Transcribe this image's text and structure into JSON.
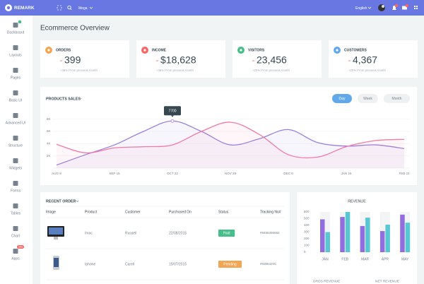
{
  "topbar": {
    "brand": "REMARK",
    "menu": "Mega",
    "language": "English"
  },
  "sidebar": {
    "items": [
      "Dashboard",
      "Layouts",
      "Pages",
      "Basic UI",
      "Advanced UI",
      "Structure",
      "Widgets",
      "Forms",
      "Tables",
      "Chart",
      "Apps"
    ],
    "apps_badge": "new"
  },
  "page_title": "Ecommerce Overview",
  "stats": [
    {
      "label": "ORDERS",
      "value": "399",
      "note": "+45% From previous month",
      "color": "#f2a654"
    },
    {
      "label": "INCOME",
      "value": "$18,628",
      "note": "+45% From previous month",
      "color": "#f96868"
    },
    {
      "label": "VISITORS",
      "value": "23,456",
      "note": "+25% From previous month",
      "color": "#46be8a"
    },
    {
      "label": "CUSTOMERS",
      "value": "4,367",
      "note": "+25% From previous month",
      "color": "#62a8ea"
    }
  ],
  "products_sales": {
    "type": "line",
    "title": "PRODUCTS SALES",
    "buttons": [
      "Day",
      "Week",
      "Month"
    ],
    "categories": [
      "AUG 8",
      null,
      "SEP 15",
      null,
      "OCT 22",
      null,
      "NOV 29",
      null,
      "DEC 8",
      null,
      "JAN 15",
      null,
      "FEB 22"
    ],
    "series": [
      {
        "color": "#9a7fe0",
        "values": [
          500,
          2200,
          3800,
          6000,
          7700,
          6000,
          3800,
          4800,
          6300,
          4200,
          3600,
          3800,
          3200
        ]
      },
      {
        "color": "#f27ba3",
        "values": [
          3900,
          2500,
          3300,
          3500,
          3800,
          6000,
          7500,
          5500,
          2200,
          1800,
          3500,
          4500,
          4700
        ]
      }
    ],
    "ylim": [
      0,
      9000
    ],
    "yticks": [
      {
        "value": 2000,
        "label": "2K"
      },
      {
        "value": 4000,
        "label": "4K"
      },
      {
        "value": 6000,
        "label": "6K"
      },
      {
        "value": 8000,
        "label": "8K"
      }
    ],
    "tooltip": "7700"
  },
  "recent_order": {
    "title": "RECENT ORDER",
    "columns": [
      "Image",
      "Product",
      "Customer",
      "Purchased On",
      "Status",
      "Tracking No#"
    ],
    "rows": [
      {
        "product": "Imac",
        "customer": "Russell",
        "purchased_on": "22/08/2015",
        "status": "Paid",
        "status_color": "#46be8a",
        "tracking": "#9486355060"
      },
      {
        "product": "Iphone",
        "customer": "Carell",
        "purchased_on": "15/07/2015",
        "status": "Pending",
        "status_color": "#f2a654",
        "tracking": "#9356420C"
      }
    ]
  },
  "revenue": {
    "type": "bar",
    "title": "REVENUE",
    "categories": [
      "JAN",
      "FEB",
      "MAR",
      "APR",
      "MAY"
    ],
    "series": [
      {
        "name": "GROS REVENUE",
        "color": "#926dde",
        "values": [
          490,
          525,
          390,
          315,
          560
        ]
      },
      {
        "name": "NET REVENUE",
        "color": "#57c7d4",
        "values": [
          300,
          600,
          515,
          410,
          440
        ]
      }
    ],
    "ylim": [
      0,
      600
    ],
    "yticks": [
      0,
      100,
      200,
      300,
      400,
      500,
      600
    ]
  }
}
